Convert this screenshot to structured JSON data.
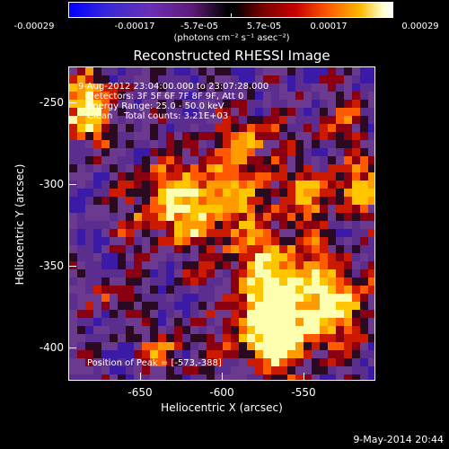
{
  "colorbar": {
    "tick_labels": [
      "-0.00029",
      "-0.00017",
      "-5.7e-05",
      "5.7e-05",
      "0.00017",
      "0.00029"
    ],
    "units": "(photons cm⁻² s⁻¹ asec⁻²)",
    "colors": [
      "#0000ff",
      "#6a2fb5",
      "#000000",
      "#c80000",
      "#ff5a00",
      "#ffffff"
    ]
  },
  "plot": {
    "title": "Reconstructed RHESSI Image",
    "info_lines": [
      "9-Aug-2012 23:04:00.000 to 23:07:28.000",
      "Detectors: 3F 5F 6F 7F 8F 9F, Att 0",
      "Energy Range: 25.0 - 50.0 keV",
      "Clean    Total counts: 3.21E+03"
    ],
    "peak_label": "Position of Peak = [-573,-388]",
    "xlabel": "Heliocentric X (arcsec)",
    "ylabel": "Heliocentric Y (arcsec)",
    "xticks": [
      "-650",
      "-600",
      "-550"
    ],
    "yticks": [
      "-250",
      "-300",
      "-350",
      "-400"
    ],
    "xrange": [
      -694,
      -507
    ],
    "yrange": [
      -418,
      -226
    ]
  },
  "footer": {
    "date": "9-May-2014 20:44"
  }
}
